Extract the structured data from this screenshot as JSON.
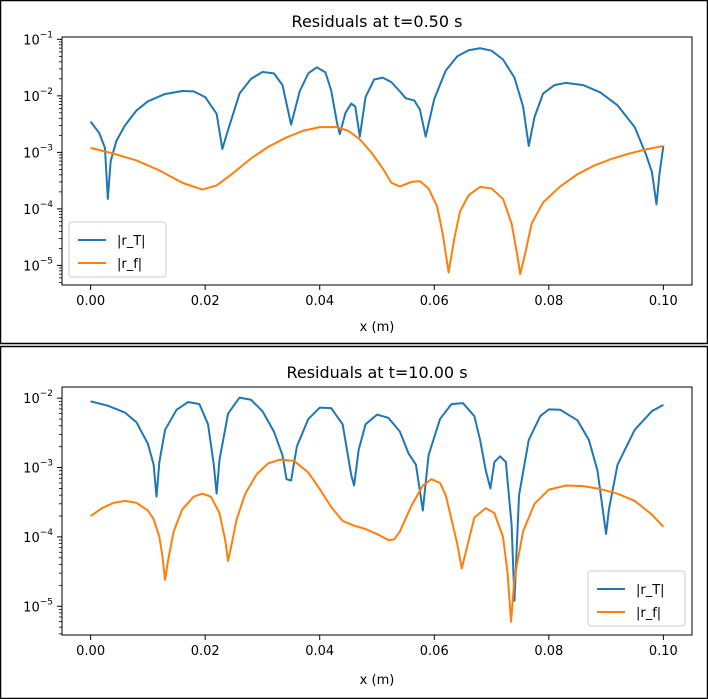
{
  "chart_data": [
    {
      "type": "line",
      "title": "Residuals at t=0.50 s",
      "xlabel": "x (m)",
      "ylabel": "",
      "xlim": [
        -0.005,
        0.105
      ],
      "ylim": [
        4.5e-06,
        0.11
      ],
      "yscale": "log",
      "grid": false,
      "legend_position": "lower-left",
      "x_ticks": [
        0.0,
        0.02,
        0.04,
        0.06,
        0.08,
        0.1
      ],
      "x_tick_labels": [
        "0.00",
        "0.02",
        "0.04",
        "0.06",
        "0.08",
        "0.10"
      ],
      "y_ticks": [
        1e-05,
        0.0001,
        0.001,
        0.01,
        0.1
      ],
      "y_tick_labels": [
        [
          "10",
          "−5"
        ],
        [
          "10",
          "−4"
        ],
        [
          "10",
          "−3"
        ],
        [
          "10",
          "−2"
        ],
        [
          "10",
          "−1"
        ]
      ],
      "series": [
        {
          "name": "|r_T|",
          "color": "#1f77b4",
          "points": [
            [
              0.0,
              0.0035
            ],
            [
              0.0015,
              0.0022
            ],
            [
              0.0025,
              0.0012
            ],
            [
              0.003,
              0.00015
            ],
            [
              0.0035,
              0.0007
            ],
            [
              0.0045,
              0.0016
            ],
            [
              0.006,
              0.003
            ],
            [
              0.008,
              0.0055
            ],
            [
              0.01,
              0.008
            ],
            [
              0.013,
              0.0108
            ],
            [
              0.016,
              0.0122
            ],
            [
              0.018,
              0.012
            ],
            [
              0.02,
              0.0095
            ],
            [
              0.022,
              0.0048
            ],
            [
              0.023,
              0.00115
            ],
            [
              0.024,
              0.0025
            ],
            [
              0.026,
              0.011
            ],
            [
              0.028,
              0.02
            ],
            [
              0.03,
              0.0265
            ],
            [
              0.032,
              0.025
            ],
            [
              0.0335,
              0.0155
            ],
            [
              0.035,
              0.0031
            ],
            [
              0.0365,
              0.012
            ],
            [
              0.038,
              0.025
            ],
            [
              0.0395,
              0.032
            ],
            [
              0.041,
              0.026
            ],
            [
              0.042,
              0.0125
            ],
            [
              0.043,
              0.0034
            ],
            [
              0.0435,
              0.0021
            ],
            [
              0.0445,
              0.005
            ],
            [
              0.0455,
              0.0073
            ],
            [
              0.0462,
              0.0065
            ],
            [
              0.047,
              0.0019
            ],
            [
              0.048,
              0.0095
            ],
            [
              0.0495,
              0.0195
            ],
            [
              0.051,
              0.021
            ],
            [
              0.0525,
              0.0175
            ],
            [
              0.054,
              0.012
            ],
            [
              0.055,
              0.0091
            ],
            [
              0.0565,
              0.0083
            ],
            [
              0.0575,
              0.0057
            ],
            [
              0.0585,
              0.0019
            ],
            [
              0.06,
              0.0088
            ],
            [
              0.062,
              0.028
            ],
            [
              0.064,
              0.05
            ],
            [
              0.066,
              0.064
            ],
            [
              0.068,
              0.0695
            ],
            [
              0.07,
              0.063
            ],
            [
              0.072,
              0.044
            ],
            [
              0.074,
              0.021
            ],
            [
              0.0755,
              0.0065
            ],
            [
              0.0765,
              0.0013
            ],
            [
              0.0775,
              0.0042
            ],
            [
              0.079,
              0.011
            ],
            [
              0.081,
              0.0155
            ],
            [
              0.083,
              0.017
            ],
            [
              0.086,
              0.0155
            ],
            [
              0.089,
              0.0115
            ],
            [
              0.092,
              0.0068
            ],
            [
              0.095,
              0.0028
            ],
            [
              0.097,
              0.0009
            ],
            [
              0.098,
              0.00045
            ],
            [
              0.0988,
              0.00012
            ],
            [
              0.0993,
              0.0004
            ],
            [
              0.1,
              0.0013
            ]
          ]
        },
        {
          "name": "|r_f|",
          "color": "#ff7f0e",
          "points": [
            [
              0.0,
              0.0012
            ],
            [
              0.004,
              0.00095
            ],
            [
              0.008,
              0.00072
            ],
            [
              0.012,
              0.00048
            ],
            [
              0.016,
              0.00029
            ],
            [
              0.0195,
              0.00022
            ],
            [
              0.022,
              0.00026
            ],
            [
              0.025,
              0.00044
            ],
            [
              0.028,
              0.00078
            ],
            [
              0.031,
              0.00125
            ],
            [
              0.034,
              0.0018
            ],
            [
              0.037,
              0.0024
            ],
            [
              0.04,
              0.0028
            ],
            [
              0.043,
              0.0028
            ],
            [
              0.045,
              0.0024
            ],
            [
              0.047,
              0.0017
            ],
            [
              0.049,
              0.001
            ],
            [
              0.051,
              0.00052
            ],
            [
              0.0525,
              0.00029
            ],
            [
              0.054,
              0.00025
            ],
            [
              0.056,
              0.0003
            ],
            [
              0.0575,
              0.00031
            ],
            [
              0.059,
              0.00023
            ],
            [
              0.0605,
              0.00011
            ],
            [
              0.0615,
              3.5e-05
            ],
            [
              0.0625,
              7.5e-06
            ],
            [
              0.0635,
              3e-05
            ],
            [
              0.0645,
              9e-05
            ],
            [
              0.066,
              0.000175
            ],
            [
              0.068,
              0.000245
            ],
            [
              0.07,
              0.00023
            ],
            [
              0.072,
              0.00015
            ],
            [
              0.0735,
              5.5e-05
            ],
            [
              0.0745,
              1.5e-05
            ],
            [
              0.075,
              7e-06
            ],
            [
              0.0758,
              1.5e-05
            ],
            [
              0.077,
              5.5e-05
            ],
            [
              0.079,
              0.00013
            ],
            [
              0.082,
              0.00025
            ],
            [
              0.085,
              0.00041
            ],
            [
              0.088,
              0.00059
            ],
            [
              0.091,
              0.00077
            ],
            [
              0.094,
              0.00095
            ],
            [
              0.097,
              0.00113
            ],
            [
              0.1,
              0.0013
            ]
          ]
        }
      ]
    },
    {
      "type": "line",
      "title": "Residuals at t=10.00 s",
      "xlabel": "x (m)",
      "ylabel": "",
      "xlim": [
        -0.005,
        0.105
      ],
      "ylim": [
        3.85e-06,
        0.0145
      ],
      "yscale": "log",
      "grid": false,
      "legend_position": "lower-right",
      "x_ticks": [
        0.0,
        0.02,
        0.04,
        0.06,
        0.08,
        0.1
      ],
      "x_tick_labels": [
        "0.00",
        "0.02",
        "0.04",
        "0.06",
        "0.08",
        "0.10"
      ],
      "y_ticks": [
        1e-05,
        0.0001,
        0.001,
        0.01
      ],
      "y_tick_labels": [
        [
          "10",
          "−5"
        ],
        [
          "10",
          "−4"
        ],
        [
          "10",
          "−3"
        ],
        [
          "10",
          "−2"
        ]
      ],
      "series": [
        {
          "name": "|r_T|",
          "color": "#1f77b4",
          "points": [
            [
              0.0,
              0.009
            ],
            [
              0.003,
              0.0078
            ],
            [
              0.006,
              0.0062
            ],
            [
              0.008,
              0.0045
            ],
            [
              0.01,
              0.0022
            ],
            [
              0.011,
              0.0011
            ],
            [
              0.0115,
              0.00038
            ],
            [
              0.012,
              0.0012
            ],
            [
              0.013,
              0.0035
            ],
            [
              0.015,
              0.0068
            ],
            [
              0.017,
              0.0088
            ],
            [
              0.019,
              0.0082
            ],
            [
              0.0205,
              0.0042
            ],
            [
              0.0215,
              0.0011
            ],
            [
              0.022,
              0.00042
            ],
            [
              0.0225,
              0.0013
            ],
            [
              0.024,
              0.006
            ],
            [
              0.026,
              0.0102
            ],
            [
              0.028,
              0.0095
            ],
            [
              0.03,
              0.0065
            ],
            [
              0.032,
              0.0033
            ],
            [
              0.0335,
              0.0015
            ],
            [
              0.0342,
              0.00068
            ],
            [
              0.035,
              0.00065
            ],
            [
              0.036,
              0.002
            ],
            [
              0.038,
              0.005
            ],
            [
              0.04,
              0.0073
            ],
            [
              0.042,
              0.0072
            ],
            [
              0.044,
              0.0042
            ],
            [
              0.0455,
              0.00078
            ],
            [
              0.046,
              0.00055
            ],
            [
              0.0468,
              0.0018
            ],
            [
              0.048,
              0.0042
            ],
            [
              0.05,
              0.0058
            ],
            [
              0.052,
              0.0052
            ],
            [
              0.054,
              0.0033
            ],
            [
              0.0555,
              0.0016
            ],
            [
              0.0568,
              0.0011
            ],
            [
              0.058,
              0.00024
            ],
            [
              0.059,
              0.0015
            ],
            [
              0.061,
              0.005
            ],
            [
              0.063,
              0.0082
            ],
            [
              0.065,
              0.0085
            ],
            [
              0.067,
              0.0055
            ],
            [
              0.068,
              0.0025
            ],
            [
              0.069,
              0.0009
            ],
            [
              0.0698,
              0.0005
            ],
            [
              0.0705,
              0.0012
            ],
            [
              0.0715,
              0.00145
            ],
            [
              0.0725,
              0.0012
            ],
            [
              0.0735,
              0.00015
            ],
            [
              0.074,
              1.2e-05
            ],
            [
              0.0748,
              0.0004
            ],
            [
              0.0765,
              0.0025
            ],
            [
              0.0785,
              0.0055
            ],
            [
              0.08,
              0.0069
            ],
            [
              0.082,
              0.0068
            ],
            [
              0.085,
              0.0048
            ],
            [
              0.087,
              0.0025
            ],
            [
              0.0885,
              0.0009
            ],
            [
              0.0895,
              0.00022
            ],
            [
              0.09,
              0.00011
            ],
            [
              0.0905,
              0.00025
            ],
            [
              0.092,
              0.0011
            ],
            [
              0.095,
              0.0035
            ],
            [
              0.098,
              0.0065
            ],
            [
              0.1,
              0.008
            ]
          ]
        },
        {
          "name": "|r_f|",
          "color": "#ff7f0e",
          "points": [
            [
              0.0,
              0.0002
            ],
            [
              0.002,
              0.00026
            ],
            [
              0.004,
              0.00031
            ],
            [
              0.006,
              0.00033
            ],
            [
              0.008,
              0.00031
            ],
            [
              0.01,
              0.00024
            ],
            [
              0.011,
              0.00018
            ],
            [
              0.012,
              0.0001
            ],
            [
              0.0125,
              5.5e-05
            ],
            [
              0.013,
              2.4e-05
            ],
            [
              0.0135,
              4.5e-05
            ],
            [
              0.0145,
              0.00012
            ],
            [
              0.016,
              0.00025
            ],
            [
              0.018,
              0.00038
            ],
            [
              0.0195,
              0.00042
            ],
            [
              0.021,
              0.00038
            ],
            [
              0.0225,
              0.00022
            ],
            [
              0.0235,
              9e-05
            ],
            [
              0.024,
              4.5e-05
            ],
            [
              0.0245,
              7e-05
            ],
            [
              0.0255,
              0.00018
            ],
            [
              0.027,
              0.00042
            ],
            [
              0.029,
              0.0008
            ],
            [
              0.031,
              0.00115
            ],
            [
              0.033,
              0.0013
            ],
            [
              0.0355,
              0.00125
            ],
            [
              0.038,
              0.00085
            ],
            [
              0.04,
              0.00049
            ],
            [
              0.042,
              0.00027
            ],
            [
              0.044,
              0.00017
            ],
            [
              0.046,
              0.000145
            ],
            [
              0.048,
              0.00013
            ],
            [
              0.05,
              0.00011
            ],
            [
              0.052,
              9e-05
            ],
            [
              0.053,
              9.2e-05
            ],
            [
              0.054,
              0.00012
            ],
            [
              0.056,
              0.00028
            ],
            [
              0.058,
              0.00055
            ],
            [
              0.0595,
              0.00068
            ],
            [
              0.061,
              0.0006
            ],
            [
              0.062,
              0.0004
            ],
            [
              0.063,
              0.00018
            ],
            [
              0.064,
              8e-05
            ],
            [
              0.0648,
              3.5e-05
            ],
            [
              0.0655,
              6e-05
            ],
            [
              0.067,
              0.00019
            ],
            [
              0.069,
              0.00026
            ],
            [
              0.0705,
              0.00022
            ],
            [
              0.072,
              0.0001
            ],
            [
              0.0728,
              3e-05
            ],
            [
              0.0734,
              6e-06
            ],
            [
              0.074,
              2.5e-05
            ],
            [
              0.0755,
              0.00012
            ],
            [
              0.0775,
              0.0003
            ],
            [
              0.08,
              0.00048
            ],
            [
              0.083,
              0.00055
            ],
            [
              0.086,
              0.00054
            ],
            [
              0.089,
              0.00049
            ],
            [
              0.092,
              0.00042
            ],
            [
              0.095,
              0.00033
            ],
            [
              0.098,
              0.00021
            ],
            [
              0.1,
              0.00014
            ]
          ]
        }
      ]
    }
  ]
}
